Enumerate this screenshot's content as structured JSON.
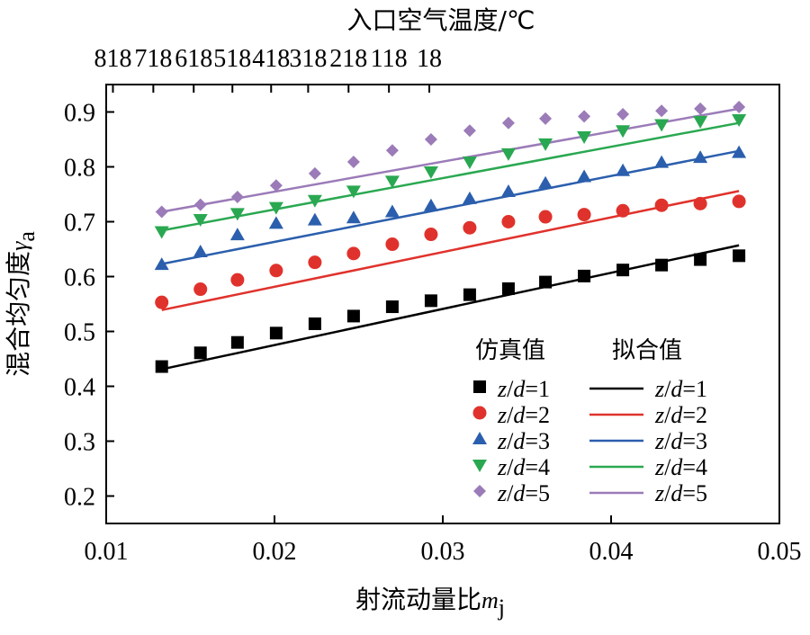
{
  "chart_data": {
    "type": "scatter",
    "xlabel": "射流动量比",
    "xlabel_symbol": "m",
    "xlabel_sub": "j",
    "ylabel": "混合均匀度",
    "ylabel_symbol": "γ",
    "ylabel_sub": "a",
    "x2label": "入口空气温度/℃",
    "xlim": [
      0.01,
      0.05
    ],
    "ylim": [
      0.15,
      0.95
    ],
    "x_ticks": [
      0.01,
      0.02,
      0.03,
      0.04,
      0.05
    ],
    "x_tick_labels": [
      "0.01",
      "0.02",
      "0.03",
      "0.04",
      "0.05"
    ],
    "y_ticks": [
      0.2,
      0.3,
      0.4,
      0.5,
      0.6,
      0.7,
      0.8,
      0.9
    ],
    "y_tick_labels": [
      "0.2",
      "0.3",
      "0.4",
      "0.5",
      "0.6",
      "0.7",
      "0.8",
      "0.9"
    ],
    "x2_ticks": [
      0.0104,
      0.0128,
      0.0152,
      0.0175,
      0.0198,
      0.022,
      0.0244,
      0.0268,
      0.0292
    ],
    "x2_tick_labels": [
      "818",
      "718",
      "618",
      "518",
      "418",
      "318",
      "218",
      "118",
      "18"
    ],
    "grid": false,
    "legend_placement": "bottom-right",
    "legend_headers": [
      "仿真值",
      "拟合值"
    ],
    "x": [
      0.0133,
      0.0156,
      0.0178,
      0.0201,
      0.0224,
      0.0247,
      0.027,
      0.0293,
      0.0316,
      0.0339,
      0.0361,
      0.0384,
      0.0407,
      0.043,
      0.0453,
      0.0476
    ],
    "series": [
      {
        "label": "z/d=1",
        "label_var": "z",
        "label_var2": "d",
        "label_val": "=1",
        "marker": "square",
        "color": "#000000",
        "values": [
          0.436,
          0.461,
          0.48,
          0.497,
          0.514,
          0.528,
          0.545,
          0.556,
          0.567,
          0.578,
          0.59,
          0.601,
          0.612,
          0.621,
          0.631,
          0.638
        ],
        "fit": [
          [
            0.0133,
            0.431
          ],
          [
            0.0476,
            0.657
          ]
        ]
      },
      {
        "label": "z/d=2",
        "label_var": "z",
        "label_var2": "d",
        "label_val": "=2",
        "marker": "circle",
        "color": "#e0322c",
        "values": [
          0.553,
          0.577,
          0.594,
          0.611,
          0.626,
          0.642,
          0.659,
          0.677,
          0.689,
          0.7,
          0.709,
          0.713,
          0.72,
          0.73,
          0.733,
          0.737
        ],
        "fit": [
          [
            0.0133,
            0.539
          ],
          [
            0.0476,
            0.756
          ]
        ]
      },
      {
        "label": "z/d=3",
        "label_var": "z",
        "label_var2": "d",
        "label_val": "=3",
        "marker": "triangle-up",
        "color": "#2b5fad",
        "values": [
          0.622,
          0.645,
          0.676,
          0.697,
          0.703,
          0.707,
          0.718,
          0.729,
          0.742,
          0.755,
          0.77,
          0.782,
          0.793,
          0.808,
          0.817,
          0.826
        ],
        "fit": [
          [
            0.0133,
            0.623
          ],
          [
            0.0476,
            0.829
          ]
        ]
      },
      {
        "label": "z/d=4",
        "label_var": "z",
        "label_var2": "d",
        "label_val": "=4",
        "marker": "triangle-down",
        "color": "#2aa851",
        "values": [
          0.682,
          0.704,
          0.715,
          0.726,
          0.739,
          0.756,
          0.774,
          0.791,
          0.809,
          0.824,
          0.842,
          0.855,
          0.866,
          0.877,
          0.883,
          0.886
        ],
        "fit": [
          [
            0.0133,
            0.684
          ],
          [
            0.0476,
            0.88
          ]
        ]
      },
      {
        "label": "z/d=5",
        "label_var": "z",
        "label_var2": "d",
        "label_val": "=5",
        "marker": "diamond",
        "color": "#9b7bb8",
        "values": [
          0.718,
          0.731,
          0.745,
          0.766,
          0.788,
          0.809,
          0.83,
          0.85,
          0.866,
          0.88,
          0.888,
          0.892,
          0.896,
          0.902,
          0.906,
          0.909
        ],
        "fit": [
          [
            0.0133,
            0.718
          ],
          [
            0.0476,
            0.906
          ]
        ]
      }
    ]
  }
}
